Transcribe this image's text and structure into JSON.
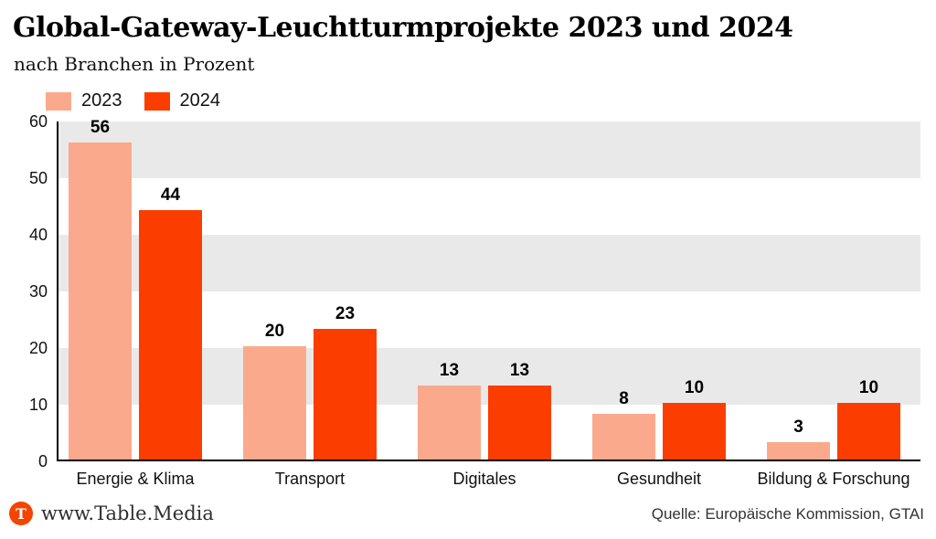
{
  "chart_data": {
    "type": "bar",
    "title": "Global-Gateway-Leuchtturmprojekte 2023 und 2024",
    "subtitle": "nach Branchen in Prozent",
    "categories": [
      "Energie & Klima",
      "Transport",
      "Digitales",
      "Gesundheit",
      "Bildung & Forschung"
    ],
    "series": [
      {
        "name": "2023",
        "color": "#fba98c",
        "values": [
          56,
          20,
          13,
          8,
          3
        ]
      },
      {
        "name": "2024",
        "color": "#fb3e00",
        "values": [
          44,
          23,
          13,
          10,
          10
        ]
      }
    ],
    "ylim": [
      0,
      60
    ],
    "yticks": [
      0,
      10,
      20,
      30,
      40,
      50,
      60
    ],
    "grid": "alternating horizontal gray bands (10-20, 30-40, 50-60)",
    "band_color": "#e9e9e9",
    "legend_position": "top-left",
    "value_labels": true,
    "unit": "Prozent"
  },
  "footer": {
    "logo_letter": "T",
    "brand": "www.Table.Media",
    "source": "Quelle: Europäische Kommission, GTAI"
  },
  "colors": {
    "background": "#ffffff",
    "axis": "#000000",
    "logo": "#f54300"
  }
}
